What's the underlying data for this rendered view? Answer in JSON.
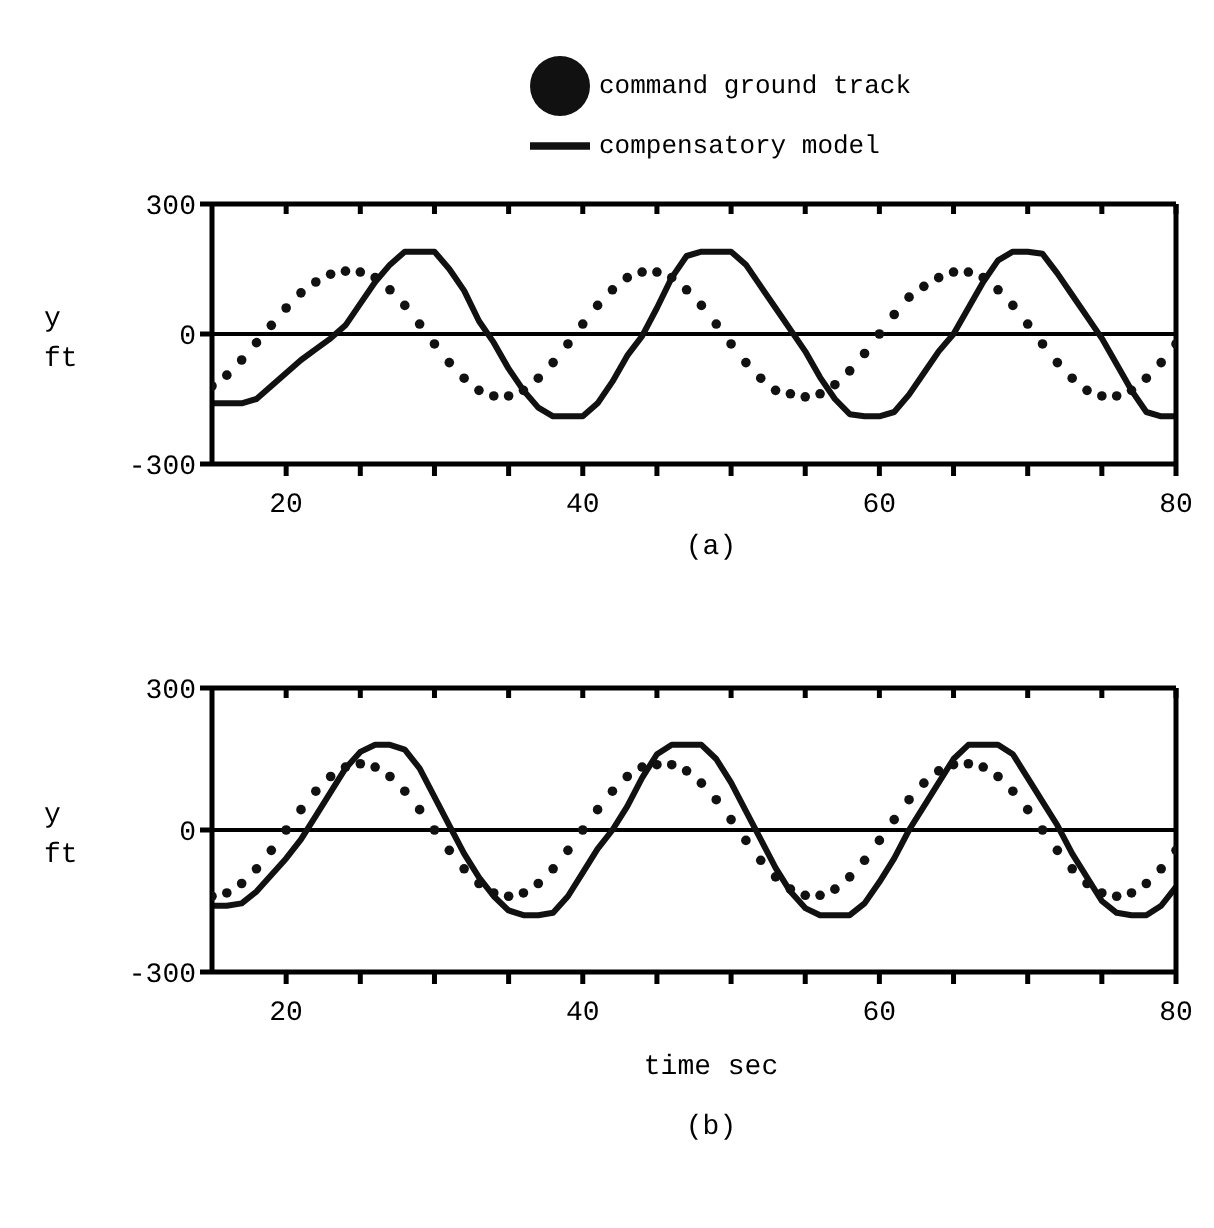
{
  "chart_data": [
    {
      "type": "line",
      "title": "(a)",
      "ylabel": "y ft",
      "legend": "top",
      "x": [
        15,
        16,
        17,
        18,
        19,
        20,
        21,
        22,
        23,
        24,
        25,
        26,
        27,
        28,
        29,
        30,
        31,
        32,
        33,
        34,
        35,
        36,
        37,
        38,
        39,
        40,
        41,
        42,
        43,
        44,
        45,
        46,
        47,
        48,
        49,
        50,
        51,
        52,
        53,
        54,
        55,
        56,
        57,
        58,
        59,
        60,
        61,
        62,
        63,
        64,
        65,
        66,
        67,
        68,
        69,
        70,
        71,
        72,
        73,
        74,
        75,
        76,
        77,
        78,
        79,
        80
      ],
      "series": [
        {
          "name": "command ground track",
          "type": "scatter",
          "marker": "circle",
          "color": "#111111",
          "values": [
            -120,
            -95,
            -60,
            -20,
            20,
            60,
            95,
            120,
            138,
            145,
            143,
            130,
            102,
            66,
            23,
            -23,
            -66,
            -102,
            -130,
            -143,
            -143,
            -130,
            -102,
            -66,
            -23,
            23,
            66,
            102,
            130,
            143,
            143,
            130,
            102,
            66,
            23,
            -23,
            -66,
            -102,
            -130,
            -138,
            -145,
            -138,
            -117,
            -85,
            -45,
            0,
            45,
            85,
            110,
            130,
            143,
            143,
            130,
            102,
            66,
            23,
            -23,
            -66,
            -102,
            -130,
            -143,
            -143,
            -130,
            -102,
            -66,
            -23
          ]
        },
        {
          "name": "compensatory model",
          "type": "line",
          "marker": "none",
          "line_style": "solid",
          "color": "#111111",
          "values": [
            -160,
            -160,
            -160,
            -150,
            -120,
            -90,
            -60,
            -35,
            -10,
            20,
            70,
            120,
            160,
            190,
            190,
            190,
            150,
            100,
            30,
            -20,
            -80,
            -130,
            -170,
            -190,
            -190,
            -190,
            -160,
            -110,
            -50,
            -5,
            60,
            130,
            180,
            190,
            190,
            190,
            160,
            110,
            60,
            10,
            -40,
            -100,
            -150,
            -185,
            -190,
            -190,
            -180,
            -140,
            -90,
            -40,
            0,
            60,
            120,
            170,
            190,
            190,
            185,
            140,
            90,
            40,
            -10,
            -70,
            -130,
            -180,
            -190,
            -190
          ]
        }
      ],
      "xlim": [
        15,
        80
      ],
      "xticks": [
        20,
        {
          "value": 25,
          "label": null
        },
        {
          "value": 30,
          "label": null
        },
        {
          "value": 35,
          "label": null
        },
        40,
        {
          "value": 45,
          "label": null
        },
        {
          "value": 50,
          "label": null
        },
        {
          "value": 55,
          "label": null
        },
        60,
        {
          "value": 65,
          "label": null
        },
        {
          "value": 70,
          "label": null
        },
        {
          "value": 75,
          "label": null
        },
        80
      ],
      "ylim": [
        -300,
        300
      ],
      "yticks": [
        -300,
        0,
        300
      ],
      "ref_lines": [
        {
          "axis": "y",
          "value": 0
        }
      ]
    },
    {
      "type": "line",
      "title": "(b)",
      "xlabel": "time sec",
      "ylabel": "y ft",
      "x": [
        15,
        16,
        17,
        18,
        19,
        20,
        21,
        22,
        23,
        24,
        25,
        26,
        27,
        28,
        29,
        30,
        31,
        32,
        33,
        34,
        35,
        36,
        37,
        38,
        39,
        40,
        41,
        42,
        43,
        44,
        45,
        46,
        47,
        48,
        49,
        50,
        51,
        52,
        53,
        54,
        55,
        56,
        57,
        58,
        59,
        60,
        61,
        62,
        63,
        64,
        65,
        66,
        67,
        68,
        69,
        70,
        71,
        72,
        73,
        74,
        75,
        76,
        77,
        78,
        79,
        80
      ],
      "series": [
        {
          "type": "scatter",
          "marker": "circle",
          "color": "#111111",
          "values": [
            -140,
            -133,
            -113,
            -82,
            -43,
            0,
            43,
            82,
            113,
            133,
            140,
            133,
            113,
            82,
            43,
            0,
            -43,
            -82,
            -113,
            -133,
            -140,
            -133,
            -113,
            -82,
            -43,
            0,
            43,
            82,
            113,
            133,
            138,
            138,
            125,
            99,
            64,
            22,
            -22,
            -64,
            -99,
            -125,
            -138,
            -138,
            -125,
            -99,
            -64,
            -22,
            22,
            64,
            99,
            125,
            138,
            140,
            133,
            113,
            82,
            43,
            0,
            -43,
            -82,
            -113,
            -133,
            -140,
            -133,
            -113,
            -82,
            -43
          ]
        },
        {
          "type": "line",
          "marker": "none",
          "line_style": "solid",
          "color": "#111111",
          "values": [
            -160,
            -160,
            -155,
            -130,
            -95,
            -60,
            -20,
            30,
            80,
            130,
            165,
            180,
            180,
            170,
            130,
            70,
            10,
            -50,
            -100,
            -140,
            -170,
            -180,
            -180,
            -175,
            -140,
            -90,
            -40,
            0,
            50,
            110,
            160,
            180,
            180,
            180,
            150,
            100,
            40,
            -20,
            -80,
            -130,
            -165,
            -180,
            -180,
            -180,
            -155,
            -110,
            -60,
            0,
            50,
            100,
            150,
            180,
            180,
            180,
            160,
            110,
            60,
            10,
            -50,
            -100,
            -150,
            -175,
            -180,
            -180,
            -160,
            -120
          ]
        }
      ],
      "xlim": [
        15,
        80
      ],
      "xticks": [
        20,
        {
          "value": 25,
          "label": null
        },
        {
          "value": 30,
          "label": null
        },
        {
          "value": 35,
          "label": null
        },
        40,
        {
          "value": 45,
          "label": null
        },
        {
          "value": 50,
          "label": null
        },
        {
          "value": 55,
          "label": null
        },
        60,
        {
          "value": 65,
          "label": null
        },
        {
          "value": 70,
          "label": null
        },
        {
          "value": 75,
          "label": null
        },
        80
      ],
      "ylim": [
        -300,
        300
      ],
      "yticks": [
        -300,
        0,
        300
      ],
      "ref_lines": [
        {
          "axis": "y",
          "value": 0
        }
      ]
    }
  ]
}
